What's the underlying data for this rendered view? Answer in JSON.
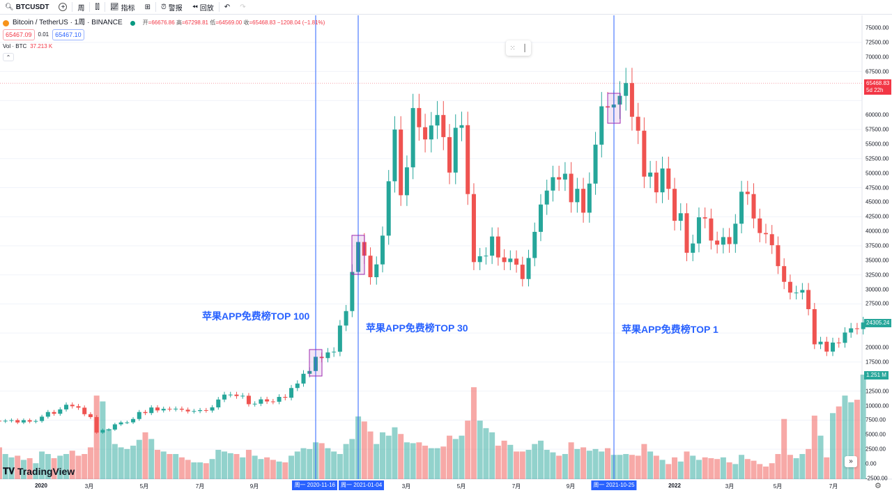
{
  "toolbar": {
    "symbol": "BTCUSDT",
    "interval": "周",
    "indicators": "指标",
    "alert": "警报",
    "replay": "回放"
  },
  "legend": {
    "title": "Bitcoin / TetherUS · 1周 · BINANCE",
    "open_label": "开",
    "open": "66676.86",
    "high_label": "高",
    "high": "67298.81",
    "low_label": "低",
    "low": "64569.00",
    "close_label": "收",
    "close": "65468.83",
    "change": "−1208.04 (−1.81%)",
    "bid": "65467.09",
    "spread": "0.01",
    "ask": "65467.10",
    "vol_label": "Vol · BTC",
    "vol": "37.213 K"
  },
  "annotations": [
    "苹果APP免费榜TOP 100",
    "苹果APP免费榜TOP 30",
    "苹果APP免费榜TOP 1"
  ],
  "marked_dates": [
    "周一 2020-11-16",
    "周一 2021-01-04",
    "周一 2021-10-25"
  ],
  "price_tag": {
    "price": "65468.83",
    "countdown": "5d 22h"
  },
  "last_price_tag": "24305.24",
  "volume_tag": "1.251 M",
  "brand": "TradingView",
  "x_labels": [
    "2020",
    "3月",
    "5月",
    "7月",
    "9月",
    "3月",
    "5月",
    "7月",
    "9月",
    "2022",
    "3月",
    "5月",
    "7月"
  ],
  "colors": {
    "up": "#26a69a",
    "down": "#ef5350",
    "marker": "#2962ff",
    "box": "#9c27b0"
  },
  "chart_data": {
    "type": "candlestick",
    "first_week": "2019-11-18",
    "interval": "1W",
    "closes": [
      7300,
      7400,
      7500,
      7100,
      7500,
      7250,
      7350,
      8100,
      8900,
      8600,
      9350,
      10150,
      9900,
      9650,
      8530,
      8030,
      5360,
      5820,
      5880,
      6780,
      7110,
      7120,
      7700,
      8900,
      8720,
      9680,
      9180,
      9450,
      9380,
      9470,
      9300,
      9010,
      9070,
      9230,
      9160,
      9700,
      11050,
      11900,
      11900,
      11650,
      11700,
      10250,
      10330,
      11080,
      10720,
      10670,
      11500,
      11360,
      13030,
      13800,
      15480,
      15960,
      18400,
      18180,
      19150,
      19270,
      23780,
      26270,
      33000,
      38150,
      35800,
      32100,
      34300,
      39250,
      48600,
      57500,
      46200,
      51000,
      61200,
      57900,
      55800,
      58200,
      60000,
      56200,
      50100,
      57800,
      58250,
      46400,
      34700,
      35700,
      35800,
      39100,
      35500,
      34700,
      35300,
      34250,
      31780,
      35400,
      39900,
      44600,
      47000,
      49300,
      48900,
      49900,
      45000,
      47300,
      43200,
      48200,
      54900,
      61500,
      61300,
      61800,
      63300,
      65500,
      59700,
      57300,
      49400,
      50100,
      46700,
      50800,
      47300,
      41800,
      43100,
      36300,
      37900,
      42400,
      42200,
      38400,
      37700,
      39000,
      37800,
      41300,
      46800,
      46400,
      42200,
      39700,
      39500,
      37600,
      34000,
      31300,
      29450,
      29450,
      29900,
      26600,
      20550,
      21000,
      19300,
      20850,
      20800,
      22580,
      23300,
      23170,
      24305
    ],
    "volumes_k": [
      380,
      300,
      260,
      280,
      230,
      250,
      190,
      330,
      300,
      250,
      280,
      300,
      340,
      280,
      300,
      380,
      1000,
      930,
      600,
      420,
      380,
      360,
      400,
      470,
      560,
      480,
      350,
      330,
      300,
      300,
      260,
      230,
      200,
      200,
      190,
      240,
      350,
      330,
      310,
      300,
      260,
      350,
      280,
      240,
      260,
      230,
      210,
      200,
      280,
      330,
      370,
      360,
      440,
      430,
      370,
      330,
      300,
      420,
      480,
      750,
      690,
      570,
      420,
      560,
      520,
      620,
      540,
      440,
      430,
      440,
      400,
      370,
      370,
      390,
      520,
      480,
      520,
      700,
      1100,
      700,
      610,
      560,
      400,
      460,
      410,
      330,
      330,
      350,
      420,
      460,
      350,
      320,
      280,
      300,
      440,
      360,
      380,
      340,
      360,
      330,
      370,
      290,
      290,
      300,
      290,
      280,
      420,
      330,
      280,
      230,
      180,
      260,
      210,
      330,
      280,
      230,
      260,
      250,
      240,
      260,
      200,
      180,
      290,
      240,
      220,
      180,
      150,
      190,
      300,
      720,
      290,
      250,
      300,
      360,
      760,
      520,
      260,
      790,
      870,
      1000,
      920,
      950,
      1251
    ],
    "y_range": [
      -2500,
      75000
    ],
    "y_step": 2500
  }
}
